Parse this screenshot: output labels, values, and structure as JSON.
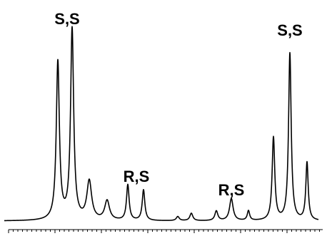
{
  "chart_data": {
    "type": "line",
    "title": "",
    "xlabel": "",
    "ylabel": "",
    "xlim": [
      0,
      440
    ],
    "ylim": [
      0,
      1.0
    ],
    "grid": false,
    "legend": "none",
    "x_ticks_labeled": [
      65,
      130,
      195,
      260,
      325,
      390
    ],
    "x_tick_labels": [
      "",
      "",
      "",
      "",
      "",
      ""
    ],
    "series": [
      {
        "color": "#000000",
        "peaks": [
          {
            "x": 75,
            "y": 0.764,
            "width": 2.6
          },
          {
            "x": 95,
            "y": 0.922,
            "width": 2.6
          },
          {
            "x": 119,
            "y": 0.187,
            "width": 4.0
          },
          {
            "x": 144,
            "y": 0.094,
            "width": 4.0
          },
          {
            "x": 173,
            "y": 0.172,
            "width": 2.2
          },
          {
            "x": 195,
            "y": 0.148,
            "width": 2.2
          },
          {
            "x": 243,
            "y": 0.02,
            "width": 2.5
          },
          {
            "x": 262,
            "y": 0.036,
            "width": 2.5
          },
          {
            "x": 297,
            "y": 0.047,
            "width": 2.5
          },
          {
            "x": 318,
            "y": 0.107,
            "width": 3.0
          },
          {
            "x": 342,
            "y": 0.047,
            "width": 2.0
          },
          {
            "x": 377,
            "y": 0.401,
            "width": 2.2
          },
          {
            "x": 400,
            "y": 0.809,
            "width": 2.2
          },
          {
            "x": 424,
            "y": 0.28,
            "width": 2.0
          }
        ]
      }
    ],
    "annotations": [
      {
        "label": "S,S",
        "x": 88
      },
      {
        "label": "R,S",
        "x": 185
      },
      {
        "label": "R,S",
        "x": 318
      },
      {
        "label": "S,S",
        "x": 400
      }
    ]
  }
}
